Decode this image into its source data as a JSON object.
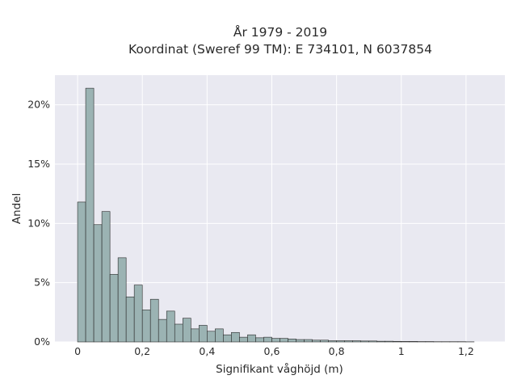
{
  "chart_data": {
    "type": "bar",
    "title": "År 1979 - 2019",
    "subtitle": "Koordinat (Sweref 99 TM): E 734101, N 6037854",
    "xlabel": "Signifikant våghöjd (m)",
    "ylabel": "Andel",
    "bin_width": 0.025,
    "bin_start": 0,
    "values": [
      11.8,
      21.4,
      9.9,
      11.0,
      5.7,
      7.1,
      3.8,
      4.8,
      2.7,
      3.6,
      1.9,
      2.6,
      1.5,
      2.0,
      1.1,
      1.4,
      0.9,
      1.1,
      0.6,
      0.8,
      0.4,
      0.6,
      0.35,
      0.4,
      0.3,
      0.3,
      0.25,
      0.2,
      0.2,
      0.15,
      0.15,
      0.1,
      0.1,
      0.1,
      0.1,
      0.08,
      0.08,
      0.06,
      0.06,
      0.05,
      0.04,
      0.04,
      0.03,
      0.03,
      0.02,
      0.02,
      0.02,
      0.02,
      0.01
    ],
    "xlim": [
      -0.07,
      1.32
    ],
    "ylim": [
      0,
      22.5
    ],
    "x_ticks": [
      {
        "value": 0,
        "label": "0"
      },
      {
        "value": 0.2,
        "label": "0,2"
      },
      {
        "value": 0.4,
        "label": "0,4"
      },
      {
        "value": 0.6,
        "label": "0,6"
      },
      {
        "value": 0.8,
        "label": "0,8"
      },
      {
        "value": 1.0,
        "label": "1"
      },
      {
        "value": 1.2,
        "label": "1,2"
      }
    ],
    "y_ticks": [
      {
        "value": 0,
        "label": "0%"
      },
      {
        "value": 5,
        "label": "5%"
      },
      {
        "value": 10,
        "label": "10%"
      },
      {
        "value": 15,
        "label": "15%"
      },
      {
        "value": 20,
        "label": "20%"
      }
    ],
    "grid": true,
    "colors": {
      "bar_fill": "#9bb3b3",
      "bar_stroke": "#2a2a2a",
      "plot_background": "#e9e9f1",
      "grid": "#ffffff"
    }
  }
}
